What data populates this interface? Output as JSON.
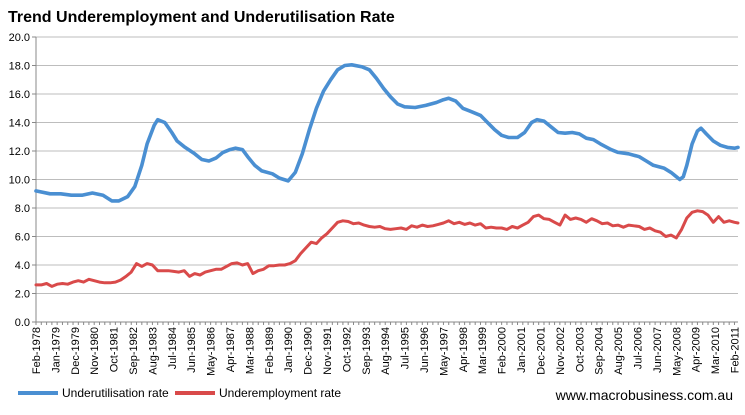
{
  "chart_data": {
    "type": "line",
    "title": "Trend Underemployment and Underutilisation Rate",
    "xlabel": "",
    "ylabel": "",
    "ylim": [
      0,
      20
    ],
    "yticks": [
      "0.0",
      "2.0",
      "4.0",
      "6.0",
      "8.0",
      "10.0",
      "12.0",
      "14.0",
      "16.0",
      "18.0",
      "20.0"
    ],
    "x_start": "Feb-1978",
    "x_months": 398,
    "x_step_months": 3,
    "xticks": [
      {
        "label": "Feb-1978",
        "m": 0
      },
      {
        "label": "Jan-1979",
        "m": 11
      },
      {
        "label": "Dec-1979",
        "m": 22
      },
      {
        "label": "Nov-1980",
        "m": 33
      },
      {
        "label": "Oct-1981",
        "m": 44
      },
      {
        "label": "Sep-1982",
        "m": 55
      },
      {
        "label": "Aug-1983",
        "m": 66
      },
      {
        "label": "Jul-1984",
        "m": 77
      },
      {
        "label": "Jun-1985",
        "m": 88
      },
      {
        "label": "May-1986",
        "m": 99
      },
      {
        "label": "Apr-1987",
        "m": 110
      },
      {
        "label": "Mar-1988",
        "m": 121
      },
      {
        "label": "Feb-1989",
        "m": 132
      },
      {
        "label": "Jan-1990",
        "m": 143
      },
      {
        "label": "Dec-1990",
        "m": 154
      },
      {
        "label": "Nov-1991",
        "m": 165
      },
      {
        "label": "Oct-1992",
        "m": 176
      },
      {
        "label": "Sep-1993",
        "m": 187
      },
      {
        "label": "Aug-1994",
        "m": 198
      },
      {
        "label": "Jul-1995",
        "m": 209
      },
      {
        "label": "Jun-1996",
        "m": 220
      },
      {
        "label": "May-1997",
        "m": 231
      },
      {
        "label": "Apr-1998",
        "m": 242
      },
      {
        "label": "Mar-1999",
        "m": 253
      },
      {
        "label": "Feb-2000",
        "m": 264
      },
      {
        "label": "Jan-2001",
        "m": 275
      },
      {
        "label": "Dec-2001",
        "m": 286
      },
      {
        "label": "Nov-2002",
        "m": 297
      },
      {
        "label": "Oct-2003",
        "m": 308
      },
      {
        "label": "Sep-2004",
        "m": 319
      },
      {
        "label": "Aug-2005",
        "m": 330
      },
      {
        "label": "Jul-2006",
        "m": 341
      },
      {
        "label": "Jun-2007",
        "m": 352
      },
      {
        "label": "May-2008",
        "m": 363
      },
      {
        "label": "Apr-2009",
        "m": 374
      },
      {
        "label": "Mar-2010",
        "m": 385
      },
      {
        "label": "Feb-2011",
        "m": 396
      }
    ],
    "series": [
      {
        "name": "Underutilisation rate",
        "color": "#4a8fd2",
        "points": [
          [
            0,
            9.2
          ],
          [
            8,
            9.0
          ],
          [
            14,
            9.0
          ],
          [
            20,
            8.9
          ],
          [
            26,
            8.9
          ],
          [
            32,
            9.05
          ],
          [
            38,
            8.9
          ],
          [
            43,
            8.5
          ],
          [
            47,
            8.5
          ],
          [
            52,
            8.8
          ],
          [
            56,
            9.5
          ],
          [
            60,
            11.0
          ],
          [
            63,
            12.5
          ],
          [
            67,
            13.8
          ],
          [
            69,
            14.2
          ],
          [
            73,
            14.0
          ],
          [
            77,
            13.3
          ],
          [
            80,
            12.7
          ],
          [
            84,
            12.3
          ],
          [
            90,
            11.8
          ],
          [
            94,
            11.4
          ],
          [
            98,
            11.3
          ],
          [
            102,
            11.5
          ],
          [
            106,
            11.9
          ],
          [
            110,
            12.1
          ],
          [
            113,
            12.2
          ],
          [
            117,
            12.1
          ],
          [
            120,
            11.6
          ],
          [
            124,
            11.0
          ],
          [
            128,
            10.6
          ],
          [
            134,
            10.4
          ],
          [
            138,
            10.1
          ],
          [
            143,
            9.9
          ],
          [
            147,
            10.5
          ],
          [
            151,
            11.8
          ],
          [
            155,
            13.5
          ],
          [
            159,
            15.0
          ],
          [
            163,
            16.2
          ],
          [
            167,
            17.0
          ],
          [
            171,
            17.7
          ],
          [
            175,
            18.0
          ],
          [
            179,
            18.05
          ],
          [
            185,
            17.9
          ],
          [
            189,
            17.7
          ],
          [
            193,
            17.1
          ],
          [
            197,
            16.4
          ],
          [
            201,
            15.8
          ],
          [
            205,
            15.3
          ],
          [
            209,
            15.1
          ],
          [
            215,
            15.05
          ],
          [
            221,
            15.2
          ],
          [
            227,
            15.4
          ],
          [
            231,
            15.6
          ],
          [
            234,
            15.7
          ],
          [
            238,
            15.5
          ],
          [
            242,
            15.0
          ],
          [
            246,
            14.8
          ],
          [
            252,
            14.5
          ],
          [
            256,
            14.0
          ],
          [
            260,
            13.5
          ],
          [
            264,
            13.1
          ],
          [
            268,
            12.95
          ],
          [
            273,
            12.95
          ],
          [
            277,
            13.3
          ],
          [
            281,
            14.0
          ],
          [
            284,
            14.2
          ],
          [
            288,
            14.1
          ],
          [
            292,
            13.7
          ],
          [
            296,
            13.3
          ],
          [
            300,
            13.25
          ],
          [
            304,
            13.3
          ],
          [
            308,
            13.2
          ],
          [
            312,
            12.9
          ],
          [
            316,
            12.8
          ],
          [
            320,
            12.5
          ],
          [
            326,
            12.1
          ],
          [
            330,
            11.9
          ],
          [
            336,
            11.8
          ],
          [
            342,
            11.6
          ],
          [
            346,
            11.3
          ],
          [
            350,
            11.0
          ],
          [
            356,
            10.8
          ],
          [
            360,
            10.5
          ],
          [
            363,
            10.2
          ],
          [
            365,
            10.0
          ],
          [
            367,
            10.2
          ],
          [
            369,
            11.0
          ],
          [
            372,
            12.5
          ],
          [
            375,
            13.4
          ],
          [
            377,
            13.6
          ],
          [
            380,
            13.2
          ],
          [
            384,
            12.7
          ],
          [
            388,
            12.4
          ],
          [
            392,
            12.25
          ],
          [
            396,
            12.2
          ],
          [
            398,
            12.25
          ]
        ]
      },
      {
        "name": "Underemployment rate",
        "color": "#d94a4a",
        "points": [
          [
            0,
            2.6
          ],
          [
            3,
            2.6
          ],
          [
            6,
            2.7
          ],
          [
            9,
            2.5
          ],
          [
            12,
            2.65
          ],
          [
            15,
            2.7
          ],
          [
            18,
            2.65
          ],
          [
            21,
            2.8
          ],
          [
            24,
            2.9
          ],
          [
            27,
            2.8
          ],
          [
            30,
            3.0
          ],
          [
            33,
            2.9
          ],
          [
            36,
            2.8
          ],
          [
            39,
            2.75
          ],
          [
            42,
            2.75
          ],
          [
            45,
            2.8
          ],
          [
            48,
            2.95
          ],
          [
            51,
            3.2
          ],
          [
            54,
            3.5
          ],
          [
            57,
            4.1
          ],
          [
            60,
            3.9
          ],
          [
            63,
            4.1
          ],
          [
            66,
            4.0
          ],
          [
            69,
            3.6
          ],
          [
            72,
            3.6
          ],
          [
            75,
            3.6
          ],
          [
            78,
            3.55
          ],
          [
            81,
            3.5
          ],
          [
            84,
            3.6
          ],
          [
            87,
            3.2
          ],
          [
            90,
            3.4
          ],
          [
            93,
            3.3
          ],
          [
            96,
            3.5
          ],
          [
            99,
            3.6
          ],
          [
            102,
            3.7
          ],
          [
            105,
            3.7
          ],
          [
            108,
            3.9
          ],
          [
            111,
            4.1
          ],
          [
            114,
            4.15
          ],
          [
            117,
            4.0
          ],
          [
            120,
            4.1
          ],
          [
            123,
            3.4
          ],
          [
            126,
            3.6
          ],
          [
            129,
            3.7
          ],
          [
            132,
            3.95
          ],
          [
            135,
            3.95
          ],
          [
            138,
            4.0
          ],
          [
            141,
            4.0
          ],
          [
            144,
            4.1
          ],
          [
            147,
            4.3
          ],
          [
            150,
            4.8
          ],
          [
            153,
            5.2
          ],
          [
            156,
            5.6
          ],
          [
            159,
            5.5
          ],
          [
            162,
            5.9
          ],
          [
            165,
            6.2
          ],
          [
            168,
            6.6
          ],
          [
            171,
            7.0
          ],
          [
            174,
            7.1
          ],
          [
            177,
            7.05
          ],
          [
            180,
            6.9
          ],
          [
            183,
            6.95
          ],
          [
            186,
            6.8
          ],
          [
            189,
            6.7
          ],
          [
            192,
            6.65
          ],
          [
            195,
            6.7
          ],
          [
            198,
            6.55
          ],
          [
            201,
            6.5
          ],
          [
            204,
            6.55
          ],
          [
            207,
            6.6
          ],
          [
            210,
            6.5
          ],
          [
            213,
            6.75
          ],
          [
            216,
            6.65
          ],
          [
            219,
            6.8
          ],
          [
            222,
            6.7
          ],
          [
            225,
            6.75
          ],
          [
            228,
            6.85
          ],
          [
            231,
            6.95
          ],
          [
            234,
            7.1
          ],
          [
            237,
            6.9
          ],
          [
            240,
            7.0
          ],
          [
            243,
            6.85
          ],
          [
            246,
            6.95
          ],
          [
            249,
            6.8
          ],
          [
            252,
            6.9
          ],
          [
            255,
            6.6
          ],
          [
            258,
            6.65
          ],
          [
            261,
            6.6
          ],
          [
            264,
            6.6
          ],
          [
            267,
            6.5
          ],
          [
            270,
            6.7
          ],
          [
            273,
            6.6
          ],
          [
            276,
            6.8
          ],
          [
            279,
            7.0
          ],
          [
            282,
            7.4
          ],
          [
            285,
            7.5
          ],
          [
            288,
            7.25
          ],
          [
            291,
            7.2
          ],
          [
            294,
            7.0
          ],
          [
            297,
            6.8
          ],
          [
            300,
            7.5
          ],
          [
            303,
            7.2
          ],
          [
            306,
            7.3
          ],
          [
            309,
            7.2
          ],
          [
            312,
            7.0
          ],
          [
            315,
            7.25
          ],
          [
            318,
            7.1
          ],
          [
            321,
            6.9
          ],
          [
            324,
            6.95
          ],
          [
            327,
            6.75
          ],
          [
            330,
            6.8
          ],
          [
            333,
            6.65
          ],
          [
            336,
            6.8
          ],
          [
            339,
            6.75
          ],
          [
            342,
            6.7
          ],
          [
            345,
            6.5
          ],
          [
            348,
            6.6
          ],
          [
            351,
            6.4
          ],
          [
            354,
            6.3
          ],
          [
            357,
            6.0
          ],
          [
            360,
            6.1
          ],
          [
            363,
            5.9
          ],
          [
            366,
            6.5
          ],
          [
            369,
            7.3
          ],
          [
            372,
            7.7
          ],
          [
            375,
            7.8
          ],
          [
            378,
            7.75
          ],
          [
            381,
            7.5
          ],
          [
            384,
            7.0
          ],
          [
            387,
            7.4
          ],
          [
            390,
            7.0
          ],
          [
            393,
            7.1
          ],
          [
            396,
            7.0
          ],
          [
            398,
            6.95
          ]
        ]
      }
    ],
    "legend": [
      {
        "label": "Underutilisation rate",
        "color": "#4a8fd2"
      },
      {
        "label": "Underemployment rate",
        "color": "#d94a4a"
      }
    ],
    "legend_position": "bottom-left",
    "grid": true,
    "source": "www.macrobusiness.com.au"
  }
}
